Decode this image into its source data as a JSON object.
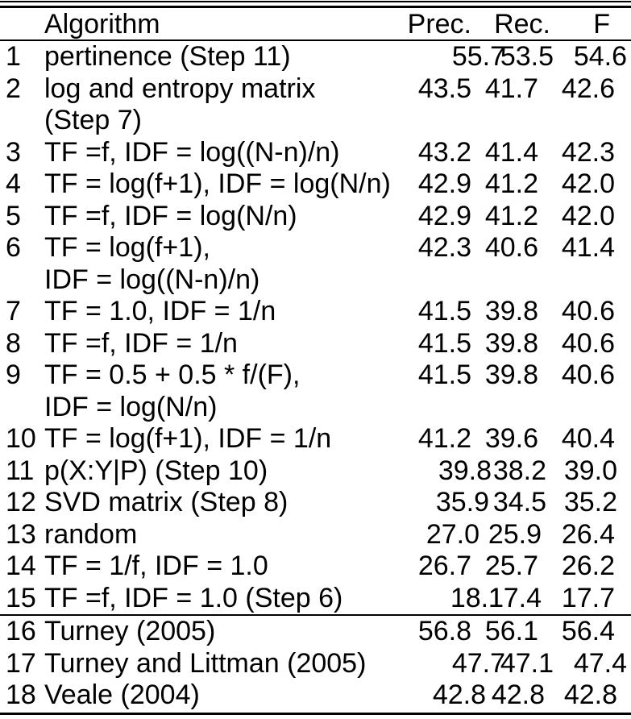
{
  "colors": {
    "text": "#000000",
    "background": "#ffffff",
    "rule": "#000000"
  },
  "table": {
    "headers": {
      "number": "",
      "algorithm": "Algorithm",
      "precision": "Prec.",
      "recall": "Rec.",
      "f": "F"
    },
    "rows": [
      {
        "num": "1",
        "line1": "pertinence (Step 11)",
        "line2": null,
        "prec": "55.7",
        "rec": "53.5",
        "f": "54.6",
        "shift": [
          42,
          19,
          15
        ],
        "section_break_before": false
      },
      {
        "num": "2",
        "line1": "log and entropy matrix",
        "line2": "(Step 7)",
        "prec": "43.5",
        "rec": "41.7",
        "f": "42.6",
        "shift": [
          0,
          0,
          0
        ],
        "section_break_before": false
      },
      {
        "num": "3",
        "line1": "TF =f, IDF = log((N-n)/n)",
        "line2": null,
        "prec": "43.2",
        "rec": "41.4",
        "f": "42.3",
        "shift": [
          0,
          0,
          0
        ],
        "section_break_before": false
      },
      {
        "num": "4",
        "line1": "TF = log(f+1), IDF = log(N/n)",
        "line2": null,
        "prec": "42.9",
        "rec": "41.2",
        "f": "42.0",
        "shift": [
          0,
          0,
          0
        ],
        "section_break_before": false
      },
      {
        "num": "5",
        "line1": "TF =f, IDF = log(N/n)",
        "line2": null,
        "prec": "42.9",
        "rec": "41.2",
        "f": "42.0",
        "shift": [
          0,
          0,
          0
        ],
        "section_break_before": false
      },
      {
        "num": "6",
        "line1": "TF = log(f+1),",
        "line2": "IDF = log((N-n)/n)",
        "prec": "42.3",
        "rec": "40.6",
        "f": "41.4",
        "shift": [
          0,
          0,
          0
        ],
        "section_break_before": false
      },
      {
        "num": "7",
        "line1": "TF = 1.0, IDF = 1/n",
        "line2": null,
        "prec": "41.5",
        "rec": "39.8",
        "f": "40.6",
        "shift": [
          0,
          0,
          0
        ],
        "section_break_before": false
      },
      {
        "num": "8",
        "line1": "TF =f, IDF = 1/n",
        "line2": null,
        "prec": "41.5",
        "rec": "39.8",
        "f": "40.6",
        "shift": [
          0,
          0,
          0
        ],
        "section_break_before": false
      },
      {
        "num": "9",
        "line1": "TF = 0.5 + 0.5 * f/(F),",
        "line2": "IDF = log(N/n)",
        "prec": "41.5",
        "rec": "39.8",
        "f": "40.6",
        "shift": [
          0,
          0,
          0
        ],
        "section_break_before": false
      },
      {
        "num": "10",
        "line1": "TF = log(f+1), IDF = 1/n",
        "line2": null,
        "prec": "41.2",
        "rec": "39.6",
        "f": "40.4",
        "shift": [
          0,
          0,
          0
        ],
        "section_break_before": false
      },
      {
        "num": "11",
        "line1": "p(X:Y|P) (Step 10)",
        "line2": null,
        "prec": "39.8",
        "rec": "38.2",
        "f": "39.0",
        "shift": [
          25,
          10,
          3
        ],
        "section_break_before": false
      },
      {
        "num": "12",
        "line1": "SVD matrix (Step 8)",
        "line2": null,
        "prec": "35.9",
        "rec": "34.5",
        "f": "35.2",
        "shift": [
          22,
          10,
          3
        ],
        "section_break_before": false
      },
      {
        "num": "13",
        "line1": "random",
        "line2": null,
        "prec": "27.0",
        "rec": "25.9",
        "f": "26.4",
        "shift": [
          10,
          4,
          0
        ],
        "section_break_before": false
      },
      {
        "num": "14",
        "line1": "TF = 1/f, IDF = 1.0",
        "line2": null,
        "prec": "26.7",
        "rec": "25.7",
        "f": "26.2",
        "shift": [
          0,
          0,
          0
        ],
        "section_break_before": false
      },
      {
        "num": "15",
        "line1": "TF =f, IDF = 1.0 (Step 6)",
        "line2": null,
        "prec": "18.1",
        "rec": "17.4",
        "f": "17.7",
        "shift": [
          40,
          4,
          0
        ],
        "section_break_before": false
      },
      {
        "num": "16",
        "line1": "Turney (2005)",
        "line2": null,
        "prec": "56.8",
        "rec": "56.1",
        "f": "56.4",
        "shift": [
          0,
          0,
          0
        ],
        "section_break_before": true
      },
      {
        "num": "17",
        "line1": "Turney and Littman (2005)",
        "line2": null,
        "prec": "47.7",
        "rec": "47.1",
        "f": "47.4",
        "shift": [
          42,
          19,
          15
        ],
        "section_break_before": false
      },
      {
        "num": "18",
        "line1": "Veale (2004)",
        "line2": null,
        "prec": "42.8",
        "rec": "42.8",
        "f": "42.8",
        "shift": [
          18,
          8,
          3
        ],
        "section_break_before": false
      }
    ]
  }
}
